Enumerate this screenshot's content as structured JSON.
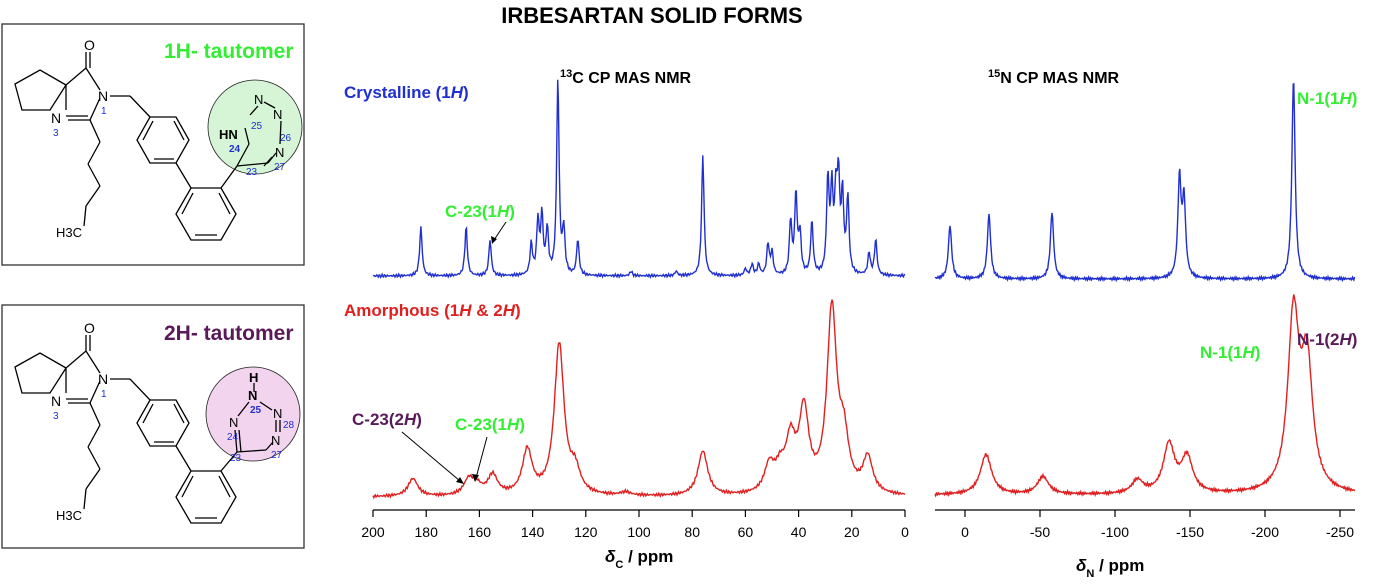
{
  "title": "IRBESARTAN SOLID FORMS",
  "colors": {
    "crystalline": "#1f2fd0",
    "amorphous": "#e02020",
    "green_label": "#33ee33",
    "purple_label": "#5a1a5a",
    "atom_num": "#1f2fd0",
    "panel_border": "#333333",
    "circle_1h": "#d6f5d6",
    "circle_2h": "#f3d4ee"
  },
  "structures": [
    {
      "tautomer_label": "1H- tautomer",
      "label_color": "green",
      "atoms": {
        "O": "O",
        "N1": "N",
        "N1_num": "1",
        "N3": "N",
        "N3_num": "3",
        "CH3": "H3C",
        "NH": "HN",
        "N24_num": "24",
        "N25": "N",
        "N25_num": "25",
        "N26": "N",
        "N26_num": "26",
        "N27": "N",
        "N27_num": "27",
        "C23_num": "23"
      }
    },
    {
      "tautomer_label": "2H- tautomer",
      "label_color": "purple",
      "atoms": {
        "O": "O",
        "N1": "N",
        "N1_num": "1",
        "N3": "N",
        "N3_num": "3",
        "CH3": "H3C",
        "H": "H",
        "N25": "N",
        "N25_num": "25",
        "N24": "N",
        "N24_num": "24",
        "N28": "N",
        "N28_num": "28",
        "N27": "N",
        "N27_num": "27",
        "C23_num": "23"
      }
    }
  ],
  "headers": {
    "c13": "13C CP MAS NMR",
    "n15": "15N CP MAS NMR",
    "crystalline": "Crystalline (1H)",
    "amorphous": "Amorphous (1H & 2H)"
  },
  "annotations": {
    "c23_1h_top": "C-23(1H)",
    "c23_2h_bottom": "C-23(2H)",
    "c23_1h_bottom": "C-23(1H)",
    "n1_1h_top": "N-1(1H)",
    "n1_1h_bottom": "N-1(1H)",
    "n1_2h_bottom": "N-1(2H)"
  },
  "axes": {
    "c13_label": "δC / ppm",
    "n15_label": "δN / ppm"
  },
  "chart_data": [
    {
      "type": "line",
      "title": "13C CP MAS NMR",
      "xlabel": "δC / ppm",
      "xlim": [
        200,
        0
      ],
      "x_ticks": [
        200,
        180,
        160,
        140,
        120,
        100,
        80,
        60,
        40,
        20,
        0
      ],
      "series": [
        {
          "name": "Crystalline (1H)",
          "color": "#1f2fd0",
          "peaks": [
            {
              "x": 182,
              "h": 0.22
            },
            {
              "x": 165,
              "h": 0.22
            },
            {
              "x": 156,
              "h": 0.16
            },
            {
              "x": 140.5,
              "h": 0.14
            },
            {
              "x": 138,
              "h": 0.24
            },
            {
              "x": 136.5,
              "h": 0.26
            },
            {
              "x": 134.5,
              "h": 0.2
            },
            {
              "x": 130.5,
              "h": 0.88
            },
            {
              "x": 128.3,
              "h": 0.2
            },
            {
              "x": 123,
              "h": 0.16
            },
            {
              "x": 103,
              "h": 0.02
            },
            {
              "x": 86,
              "h": 0.02
            },
            {
              "x": 76,
              "h": 0.54
            },
            {
              "x": 60,
              "h": 0.03
            },
            {
              "x": 57.5,
              "h": 0.05
            },
            {
              "x": 55,
              "h": 0.05
            },
            {
              "x": 51.5,
              "h": 0.14
            },
            {
              "x": 50,
              "h": 0.1
            },
            {
              "x": 43,
              "h": 0.24
            },
            {
              "x": 41,
              "h": 0.36
            },
            {
              "x": 39.5,
              "h": 0.18
            },
            {
              "x": 35,
              "h": 0.24
            },
            {
              "x": 29,
              "h": 0.42
            },
            {
              "x": 27.5,
              "h": 0.36
            },
            {
              "x": 26,
              "h": 0.32
            },
            {
              "x": 25,
              "h": 0.4
            },
            {
              "x": 23.5,
              "h": 0.34
            },
            {
              "x": 21.5,
              "h": 0.34
            },
            {
              "x": 13.5,
              "h": 0.1
            },
            {
              "x": 11,
              "h": 0.16
            }
          ]
        },
        {
          "name": "Amorphous (1H & 2H)",
          "color": "#e02020",
          "peaks": [
            {
              "x": 185,
              "h": 0.08
            },
            {
              "x": 164,
              "h": 0.07
            },
            {
              "x": 161,
              "h": 0.04
            },
            {
              "x": 155,
              "h": 0.09
            },
            {
              "x": 142,
              "h": 0.2
            },
            {
              "x": 130,
              "h": 0.68
            },
            {
              "x": 124,
              "h": 0.1
            },
            {
              "x": 105,
              "h": 0.015
            },
            {
              "x": 76,
              "h": 0.2
            },
            {
              "x": 51,
              "h": 0.12
            },
            {
              "x": 47,
              "h": 0.09
            },
            {
              "x": 43,
              "h": 0.22
            },
            {
              "x": 38,
              "h": 0.36
            },
            {
              "x": 27.5,
              "h": 0.82
            },
            {
              "x": 23,
              "h": 0.22
            },
            {
              "x": 14,
              "h": 0.16
            }
          ]
        }
      ]
    },
    {
      "type": "line",
      "title": "15N CP MAS NMR",
      "xlabel": "δN / ppm",
      "xlim": [
        20,
        -260
      ],
      "x_ticks": [
        0,
        -50,
        -100,
        -150,
        -200,
        -250
      ],
      "series": [
        {
          "name": "Crystalline (1H)",
          "color": "#1f2fd0",
          "peaks": [
            {
              "x": 10,
              "h": 0.24
            },
            {
              "x": -16,
              "h": 0.29
            },
            {
              "x": -58,
              "h": 0.3
            },
            {
              "x": -143,
              "h": 0.44
            },
            {
              "x": -146,
              "h": 0.34
            },
            {
              "x": -219,
              "h": 0.9
            }
          ]
        },
        {
          "name": "Amorphous (1H & 2H)",
          "color": "#e02020",
          "peaks": [
            {
              "x": -14,
              "h": 0.18
            },
            {
              "x": -52,
              "h": 0.08
            },
            {
              "x": -115,
              "h": 0.06
            },
            {
              "x": -136,
              "h": 0.22
            },
            {
              "x": -148,
              "h": 0.16
            },
            {
              "x": -219,
              "h": 0.78
            },
            {
              "x": -228,
              "h": 0.56
            }
          ]
        }
      ]
    }
  ]
}
